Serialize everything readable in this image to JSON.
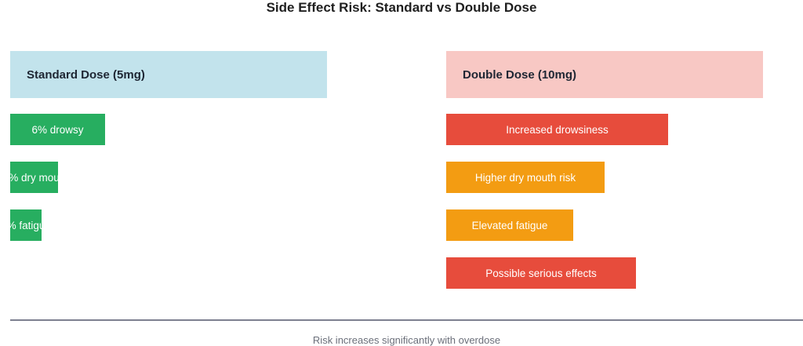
{
  "title": "Side Effect Risk: Standard vs Double Dose",
  "colors": {
    "standard_header": "#c2e3ec",
    "double_header": "#f8c8c4",
    "green": "#27ae60",
    "red": "#e74c3c",
    "orange": "#f39c12"
  },
  "standard": {
    "label": "Standard Dose (5mg)",
    "items": [
      {
        "label": "6% drowsy",
        "level": 0.3,
        "color": "#27ae60"
      },
      {
        "label": "% dry mou",
        "level": 0.15,
        "color": "#27ae60"
      },
      {
        "label": "% fatigu",
        "level": 0.1,
        "color": "#27ae60"
      }
    ]
  },
  "double": {
    "label": "Double Dose (10mg)",
    "items": [
      {
        "label": "Increased drowsiness",
        "level": 0.7,
        "color": "#e74c3c"
      },
      {
        "label": "Higher dry mouth risk",
        "level": 0.5,
        "color": "#f39c12"
      },
      {
        "label": "Elevated fatigue",
        "level": 0.4,
        "color": "#f39c12"
      },
      {
        "label": "Possible serious effects",
        "level": 0.6,
        "color": "#e74c3c"
      }
    ]
  },
  "footer": "Risk increases significantly with overdose"
}
